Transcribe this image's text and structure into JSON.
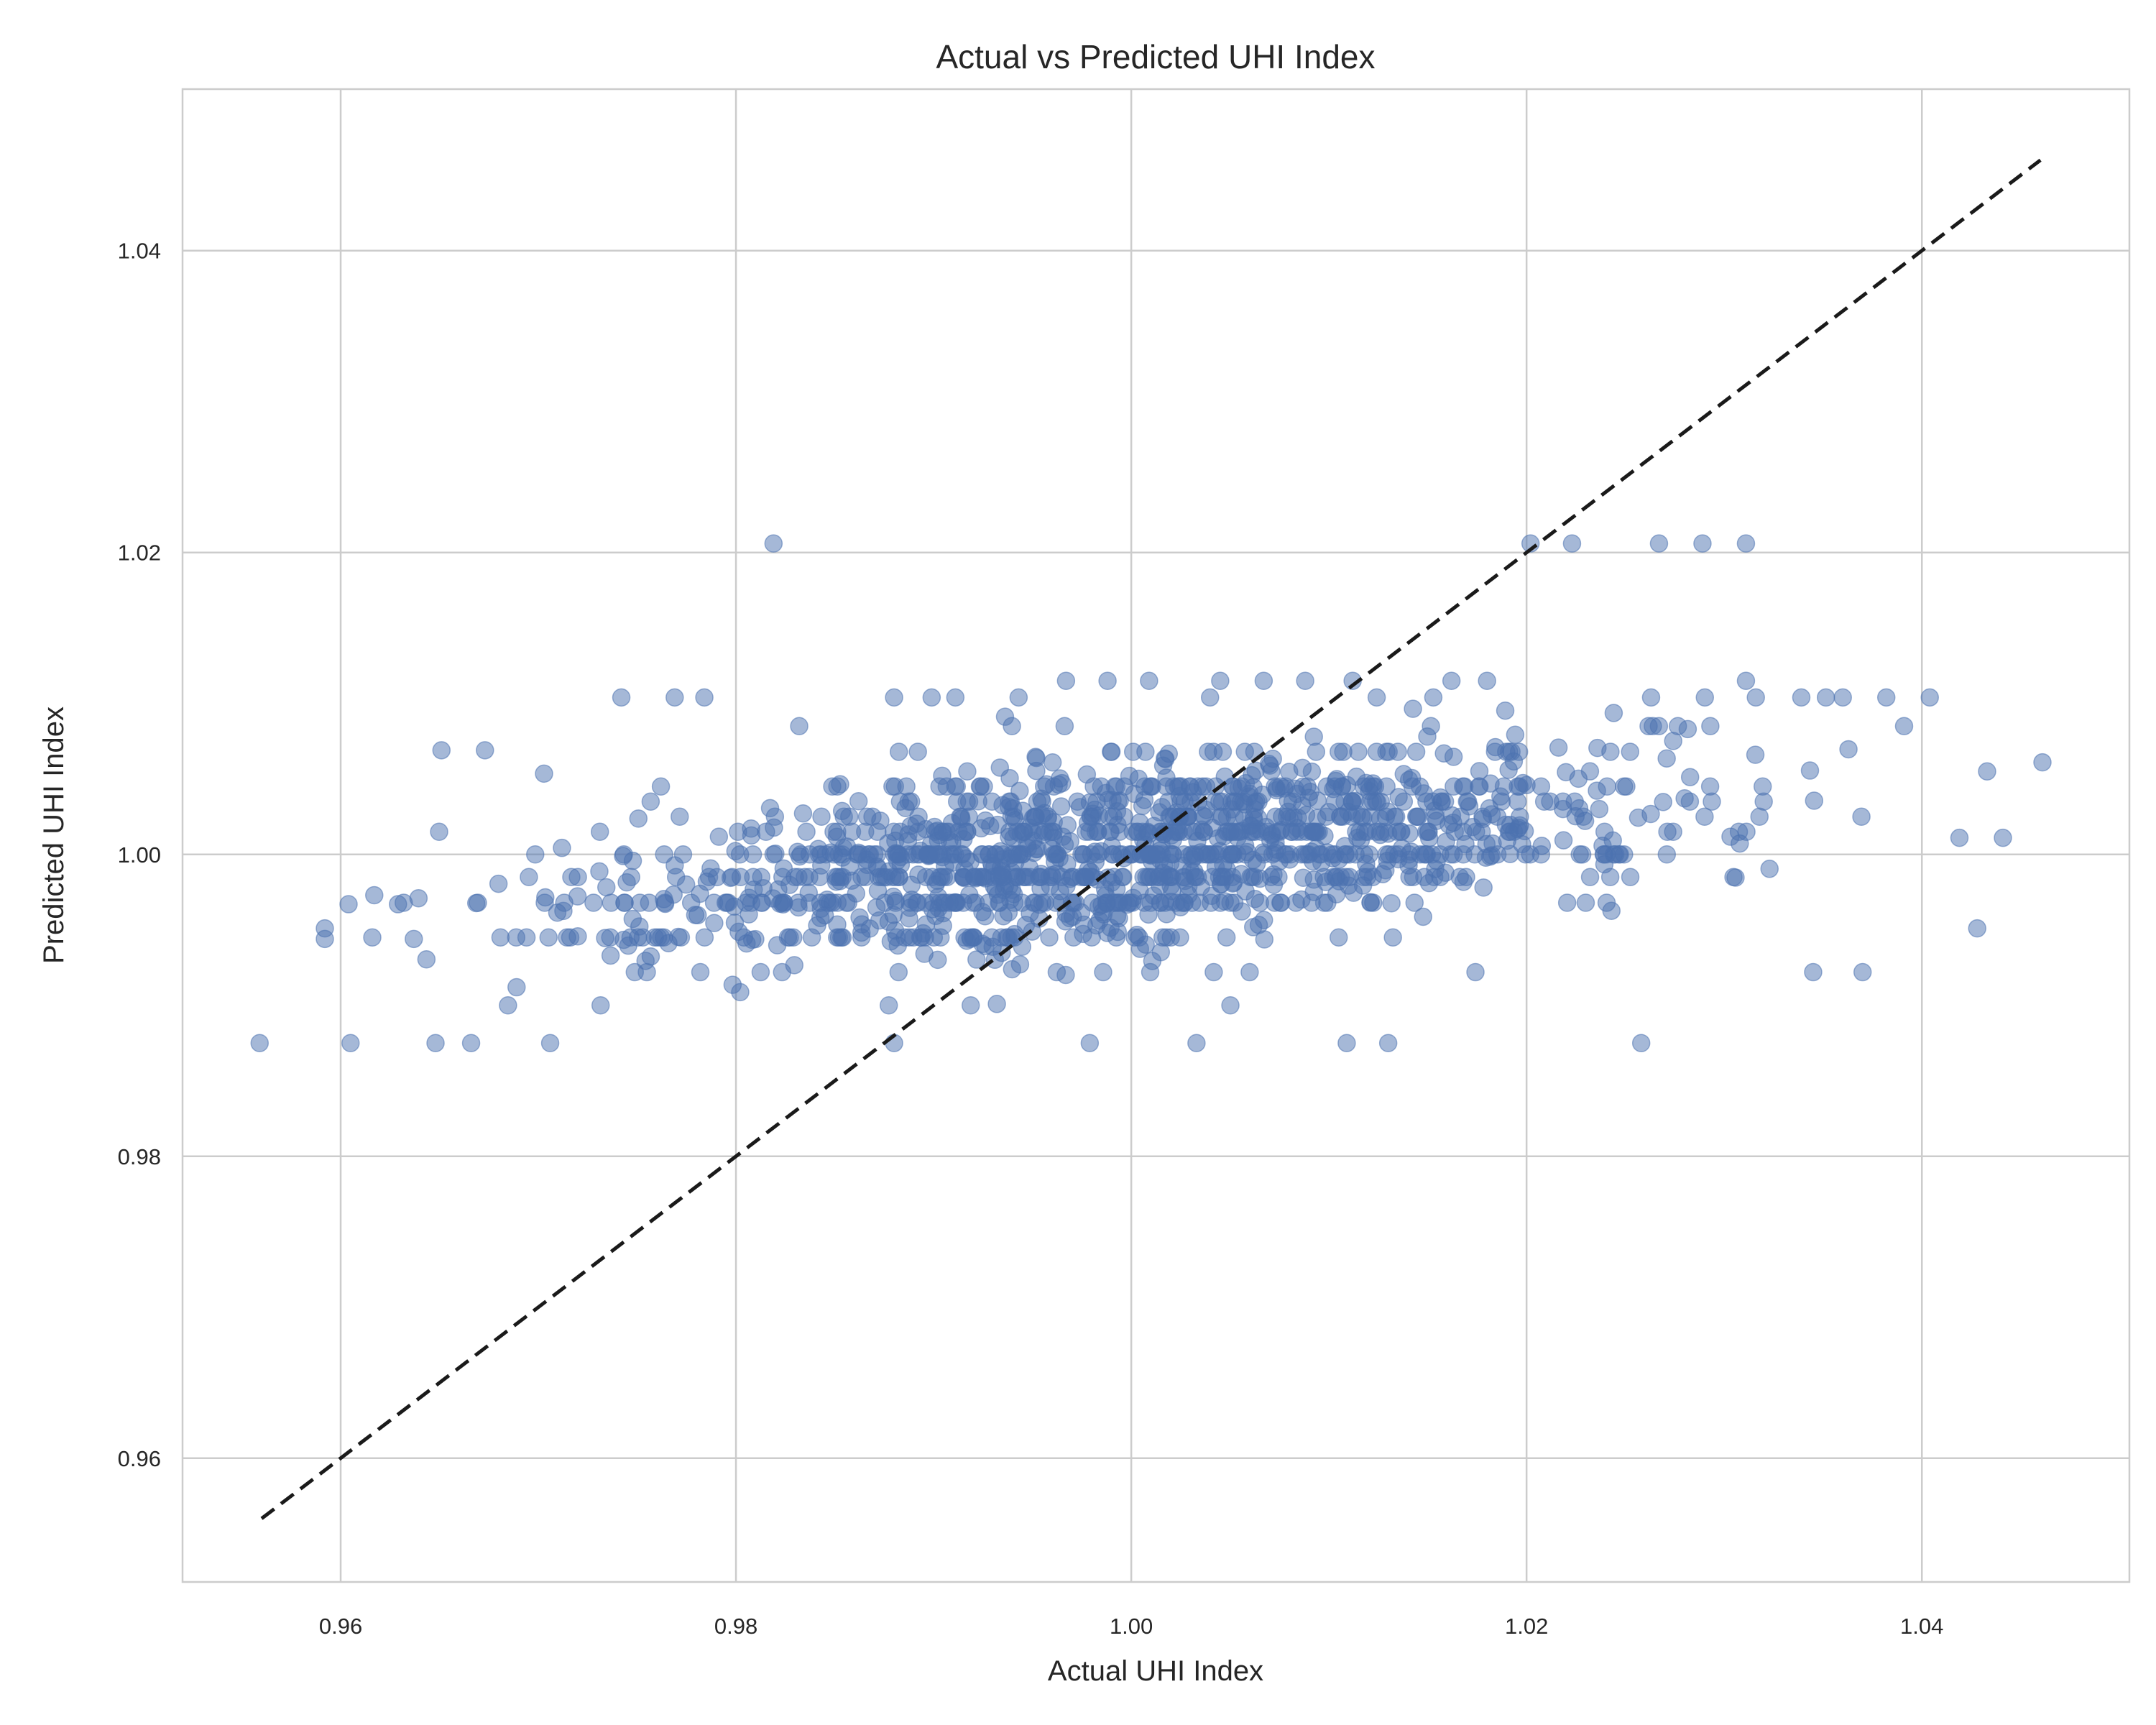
{
  "chart_data": {
    "type": "scatter",
    "title": "Actual vs Predicted UHI Index",
    "xlabel": "Actual UHI Index",
    "ylabel": "Predicted UHI Index",
    "xlim": [
      0.952,
      1.0505
    ],
    "ylim": [
      0.9518,
      1.0507
    ],
    "xticks": [
      0.96,
      0.98,
      1.0,
      1.02,
      1.04
    ],
    "yticks": [
      0.96,
      0.98,
      1.0,
      1.02,
      1.04
    ],
    "xtick_labels": [
      "0.96",
      "0.98",
      "1.00",
      "1.02",
      "1.04"
    ],
    "ytick_labels": [
      "0.96",
      "0.98",
      "1.00",
      "1.02",
      "1.04"
    ],
    "grid": true,
    "point_color": "#4c72b0",
    "reference_line": {
      "x": [
        0.956,
        1.046
      ],
      "y": [
        0.956,
        1.046
      ],
      "color": "#1a1a1a",
      "style": "dashed"
    },
    "anchor_points": [
      {
        "x": 0.9559,
        "y": 0.9875
      },
      {
        "x": 0.9592,
        "y": 0.9944
      },
      {
        "x": 0.9592,
        "y": 0.9951
      },
      {
        "x": 0.9605,
        "y": 0.9875
      },
      {
        "x": 0.9604,
        "y": 0.9967
      },
      {
        "x": 0.9616,
        "y": 0.9945
      },
      {
        "x": 0.9617,
        "y": 0.9973
      },
      {
        "x": 0.9629,
        "y": 0.9967
      },
      {
        "x": 0.9637,
        "y": 0.9944
      },
      {
        "x": 0.9648,
        "y": 0.9875
      },
      {
        "x": 0.9651,
        "y": 1.0069
      },
      {
        "x": 0.9666,
        "y": 0.9875
      },
      {
        "x": 0.9673,
        "y": 1.0069
      },
      {
        "x": 0.9689,
        "y": 0.9912
      },
      {
        "x": 0.9706,
        "y": 0.9875
      },
      {
        "x": 0.9742,
        "y": 1.0104
      },
      {
        "x": 0.9769,
        "y": 1.0104
      },
      {
        "x": 0.9784,
        "y": 1.0104
      },
      {
        "x": 0.9819,
        "y": 1.0206
      },
      {
        "x": 0.9832,
        "y": 1.0085
      },
      {
        "x": 0.988,
        "y": 1.0104
      },
      {
        "x": 0.988,
        "y": 0.9875
      },
      {
        "x": 0.9899,
        "y": 1.0104
      },
      {
        "x": 0.9911,
        "y": 1.0104
      },
      {
        "x": 0.9943,
        "y": 1.0104
      },
      {
        "x": 0.9967,
        "y": 1.0115
      },
      {
        "x": 0.9979,
        "y": 0.9875
      },
      {
        "x": 0.9988,
        "y": 1.0115
      },
      {
        "x": 1.0009,
        "y": 1.0115
      },
      {
        "x": 1.0033,
        "y": 0.9875
      },
      {
        "x": 1.0045,
        "y": 1.0115
      },
      {
        "x": 1.0067,
        "y": 1.0115
      },
      {
        "x": 1.0088,
        "y": 1.0115
      },
      {
        "x": 1.0109,
        "y": 0.9875
      },
      {
        "x": 1.0112,
        "y": 1.0115
      },
      {
        "x": 1.013,
        "y": 0.9875
      },
      {
        "x": 1.0162,
        "y": 1.0115
      },
      {
        "x": 1.018,
        "y": 1.0115
      },
      {
        "x": 1.0202,
        "y": 1.0206
      },
      {
        "x": 1.0223,
        "y": 1.0206
      },
      {
        "x": 1.0258,
        "y": 0.9875
      },
      {
        "x": 1.0263,
        "y": 1.0104
      },
      {
        "x": 1.0267,
        "y": 1.0206
      },
      {
        "x": 1.0289,
        "y": 1.0206
      },
      {
        "x": 1.0311,
        "y": 1.0206
      },
      {
        "x": 1.0311,
        "y": 1.0115
      },
      {
        "x": 1.0316,
        "y": 1.0104
      },
      {
        "x": 1.0339,
        "y": 1.0104
      },
      {
        "x": 1.0345,
        "y": 0.9922
      },
      {
        "x": 1.036,
        "y": 1.0104
      },
      {
        "x": 1.037,
        "y": 0.9922
      },
      {
        "x": 1.0382,
        "y": 1.0104
      },
      {
        "x": 1.0391,
        "y": 1.0085
      },
      {
        "x": 1.0404,
        "y": 1.0104
      },
      {
        "x": 1.0419,
        "y": 1.0011
      },
      {
        "x": 1.0428,
        "y": 0.9951
      },
      {
        "x": 1.0433,
        "y": 1.0055
      },
      {
        "x": 1.0441,
        "y": 1.0011
      },
      {
        "x": 1.0461,
        "y": 1.0061
      }
    ],
    "bulk_summary": {
      "n": 1400,
      "x_mean": 1.0,
      "x_sd": 0.0135,
      "y_center": 1.0,
      "y_levels": [
        0.9875,
        0.99,
        0.9922,
        0.9945,
        0.9968,
        0.9985,
        1.0,
        1.0015,
        1.0025,
        1.0035,
        1.0045,
        1.0068,
        1.0085,
        1.0104
      ],
      "slope": 0.12,
      "seed": 7
    }
  }
}
